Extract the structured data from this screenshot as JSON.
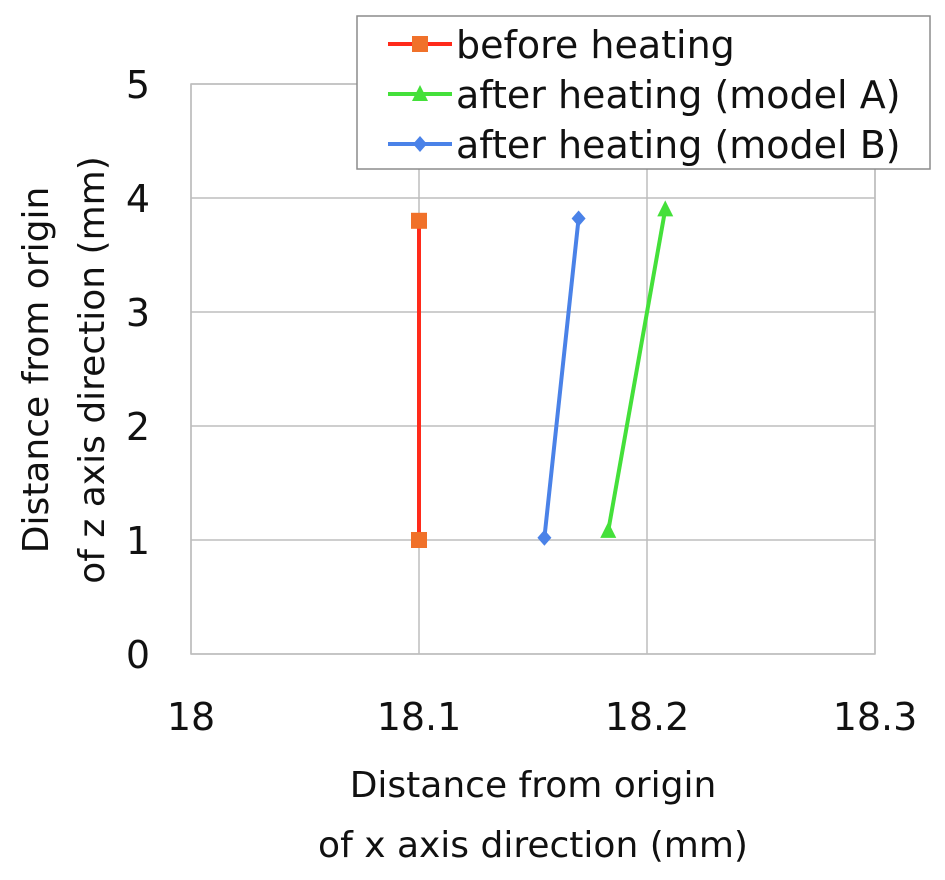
{
  "chart_data": {
    "type": "line",
    "xlabel": [
      "Distance from origin",
      "of x axis direction (mm)"
    ],
    "ylabel": [
      "Distance from origin",
      "of z axis direction (mm)"
    ],
    "xlim": [
      18,
      18.3
    ],
    "ylim": [
      0,
      5
    ],
    "xticks": [
      "18",
      "18.1",
      "18.2",
      "18.3"
    ],
    "yticks": [
      "0",
      "1",
      "2",
      "3",
      "4",
      "5"
    ],
    "grid": true,
    "legend_position": "top-right",
    "series": [
      {
        "name": "before heating",
        "color": "#ff2a1a",
        "marker_color": "#f0712a",
        "marker": "square",
        "points": [
          {
            "x": 18.1,
            "y": 1.0
          },
          {
            "x": 18.1,
            "y": 3.8
          }
        ]
      },
      {
        "name": "after heating (model A)",
        "color": "#44e03a",
        "marker_color": "#44e03a",
        "marker": "triangle",
        "points": [
          {
            "x": 18.183,
            "y": 1.08
          },
          {
            "x": 18.208,
            "y": 3.9
          }
        ]
      },
      {
        "name": "after heating (model B)",
        "color": "#4a82e8",
        "marker_color": "#4a82e8",
        "marker": "diamond",
        "points": [
          {
            "x": 18.155,
            "y": 1.02
          },
          {
            "x": 18.17,
            "y": 3.82
          }
        ]
      }
    ]
  }
}
